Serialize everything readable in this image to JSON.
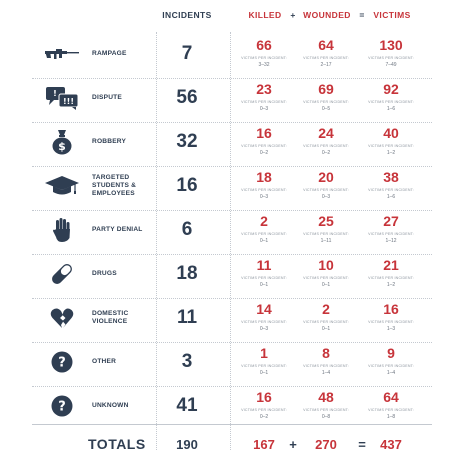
{
  "headers": {
    "incidents": "INCIDENTS",
    "killed": "KILLED",
    "plus": "+",
    "wounded": "WOUNDED",
    "equals": "=",
    "victims": "VICTIMS"
  },
  "per_incident_label": "VICTIMS PER INCIDENT:",
  "colors": {
    "navy": "#2f3e52",
    "red": "#c7343a"
  },
  "chart_data": {
    "type": "table",
    "columns": [
      "INCIDENTS",
      "KILLED",
      "WOUNDED",
      "VICTIMS"
    ],
    "rows": [
      {
        "icon": "rifle-icon",
        "label": "RAMPAGE",
        "incidents": "7",
        "killed": "66",
        "killed_range": "3–32",
        "wounded": "64",
        "wounded_range": "2–17",
        "victims": "130",
        "victims_range": "7–49"
      },
      {
        "icon": "speech-bubbles-icon",
        "label": "DISPUTE",
        "incidents": "56",
        "killed": "23",
        "killed_range": "0–3",
        "wounded": "69",
        "wounded_range": "0–5",
        "victims": "92",
        "victims_range": "1–6"
      },
      {
        "icon": "money-bag-icon",
        "label": "ROBBERY",
        "incidents": "32",
        "killed": "16",
        "killed_range": "0–2",
        "wounded": "24",
        "wounded_range": "0–2",
        "victims": "40",
        "victims_range": "1–2"
      },
      {
        "icon": "graduation-cap-icon",
        "label": "TARGETED STUDENTS & EMPLOYEES",
        "incidents": "16",
        "killed": "18",
        "killed_range": "0–3",
        "wounded": "20",
        "wounded_range": "0–3",
        "victims": "38",
        "victims_range": "1–6"
      },
      {
        "icon": "raised-hand-icon",
        "label": "PARTY DENIAL",
        "incidents": "6",
        "killed": "2",
        "killed_range": "0–1",
        "wounded": "25",
        "wounded_range": "1–11",
        "victims": "27",
        "victims_range": "1–12"
      },
      {
        "icon": "pill-icon",
        "label": "DRUGS",
        "incidents": "18",
        "killed": "11",
        "killed_range": "0–1",
        "wounded": "10",
        "wounded_range": "0–1",
        "victims": "21",
        "victims_range": "1–2"
      },
      {
        "icon": "broken-heart-icon",
        "label": "DOMESTIC VIOLENCE",
        "incidents": "11",
        "killed": "14",
        "killed_range": "0–3",
        "wounded": "2",
        "wounded_range": "0–1",
        "victims": "16",
        "victims_range": "1–3"
      },
      {
        "icon": "question-icon",
        "label": "OTHER",
        "incidents": "3",
        "killed": "1",
        "killed_range": "0–1",
        "wounded": "8",
        "wounded_range": "1–4",
        "victims": "9",
        "victims_range": "1–4"
      },
      {
        "icon": "question-icon",
        "label": "UNKNOWN",
        "incidents": "41",
        "killed": "16",
        "killed_range": "0–2",
        "wounded": "48",
        "wounded_range": "0–8",
        "victims": "64",
        "victims_range": "1–8"
      }
    ],
    "totals": {
      "label": "TOTALS",
      "incidents": "190",
      "killed": "167",
      "wounded": "270",
      "victims": "437"
    }
  }
}
